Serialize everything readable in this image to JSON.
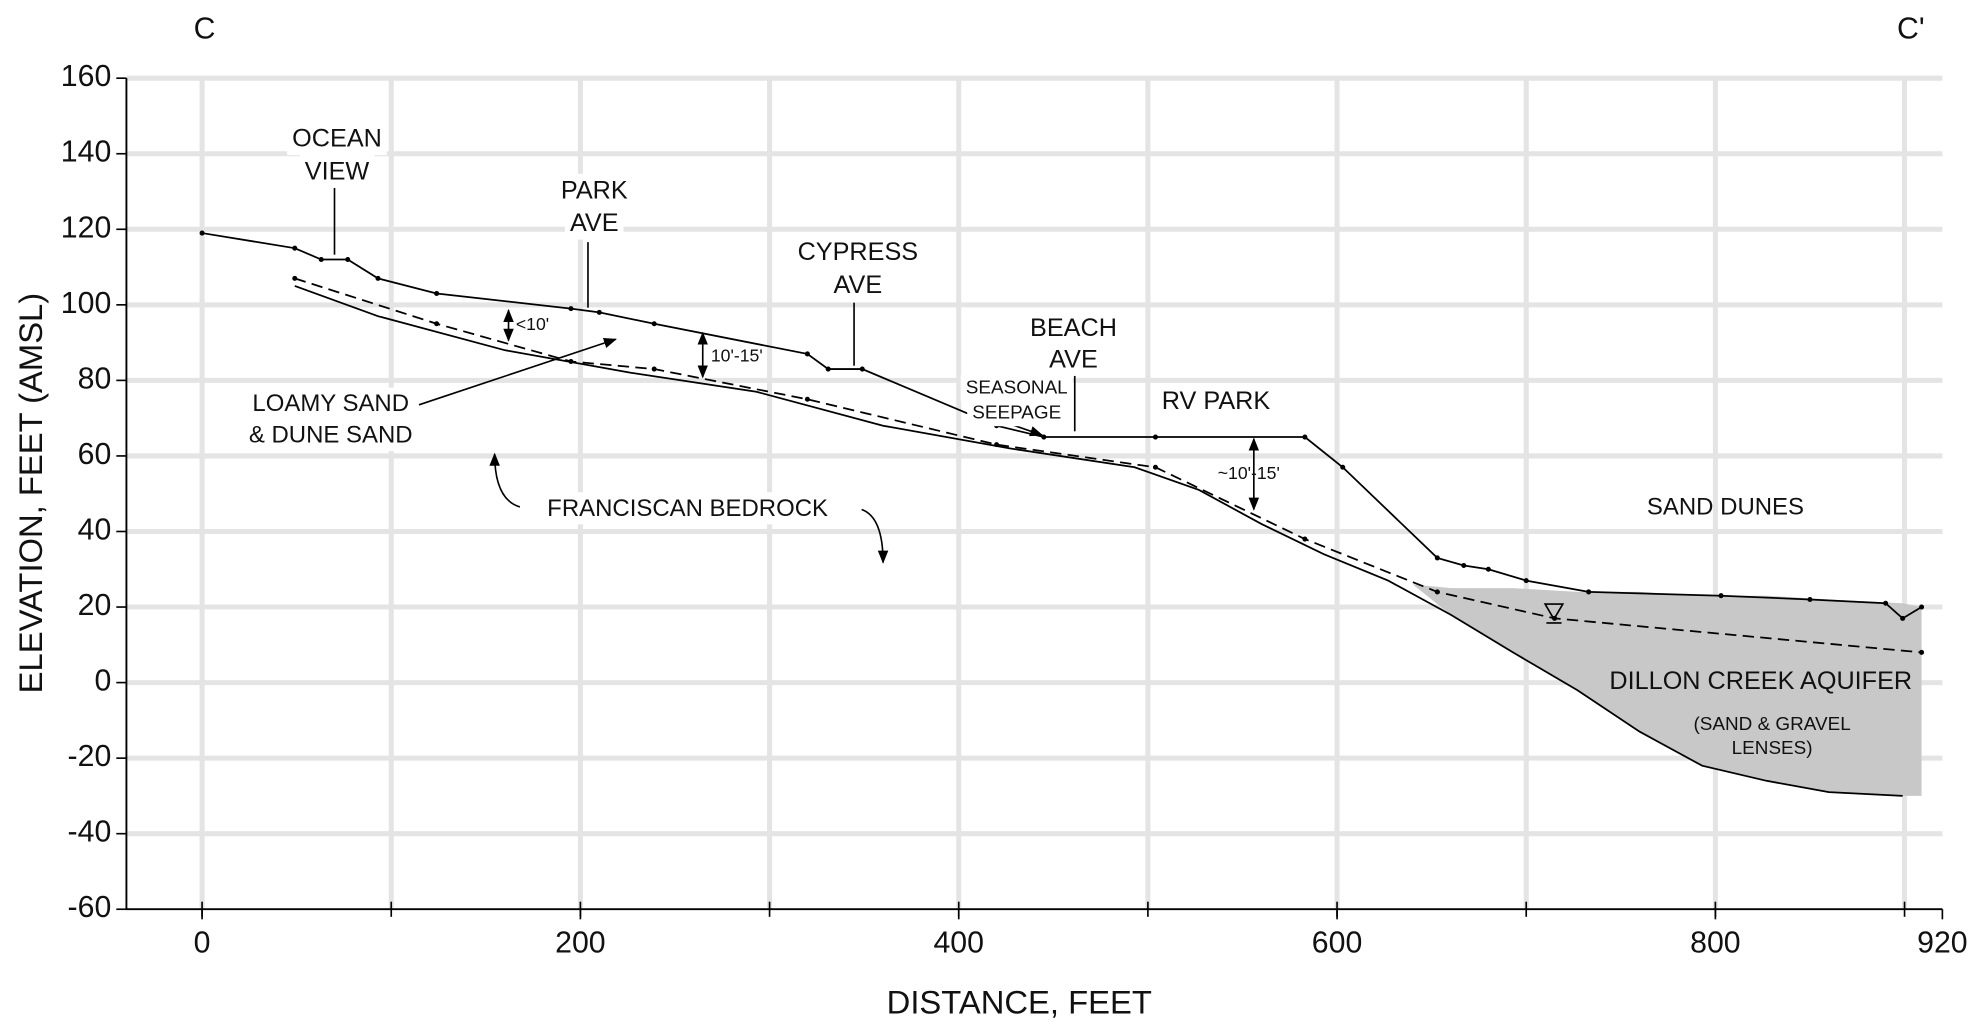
{
  "chart_data": {
    "type": "cross-section",
    "xlabel": "DISTANCE, FEET",
    "ylabel": "ELEVATION, FEET (AMSL)",
    "xlim": [
      -40,
      920
    ],
    "ylim": [
      -60,
      160
    ],
    "xticks": [
      0,
      200,
      400,
      600,
      800,
      920
    ],
    "xgrid": [
      0,
      100,
      200,
      300,
      400,
      500,
      600,
      700,
      800,
      900
    ],
    "yticks": [
      -60,
      -40,
      -20,
      0,
      20,
      40,
      60,
      80,
      100,
      120,
      140,
      160
    ],
    "grid": true,
    "series": [
      {
        "fill": "#c8c8c8",
        "x": [
          640,
          660,
          693,
          727,
          760,
          793,
          827,
          860,
          899,
          909
        ],
        "values": [
          26,
          25,
          25,
          24,
          24,
          23,
          23,
          22,
          21,
          20
        ],
        "bottom": [
          26,
          18,
          8,
          -2,
          -13,
          -22,
          -26,
          -29,
          -30,
          -30
        ]
      },
      {
        "color": "#000000",
        "style": "solid",
        "markers": true,
        "x": [
          0,
          49,
          63,
          77,
          93,
          124,
          195,
          210,
          239,
          320,
          331,
          349,
          420,
          445,
          504,
          583,
          603,
          653,
          667,
          680,
          700,
          733,
          803,
          850,
          890,
          899,
          909
        ],
        "values": [
          119,
          115,
          112,
          112,
          107,
          103,
          99,
          98,
          95,
          87,
          83,
          83,
          68,
          65,
          65,
          65,
          57,
          33,
          31,
          30,
          27,
          24,
          23,
          22,
          21,
          17,
          20
        ]
      },
      {
        "color": "#000000",
        "style": "dashed",
        "markers": true,
        "x": [
          49,
          124,
          195,
          239,
          320,
          420,
          504,
          583,
          653,
          715,
          909
        ],
        "values": [
          107,
          95,
          85,
          83,
          75,
          63,
          57,
          38,
          24,
          17,
          8
        ]
      },
      {
        "color": "#000000",
        "style": "solid",
        "markers": false,
        "x": [
          49,
          93,
          160,
          227,
          293,
          360,
          427,
          493,
          527,
          560,
          593,
          627,
          660,
          693,
          727,
          760,
          793,
          827,
          860,
          899
        ],
        "values": [
          105,
          97,
          88,
          82,
          77,
          68,
          62,
          57,
          51,
          42,
          34,
          27,
          18,
          8,
          -2,
          -13,
          -22,
          -26,
          -29,
          -30
        ]
      }
    ],
    "annotations": [
      [
        "C"
      ],
      [
        "C'"
      ],
      [
        "OCEAN",
        "VIEW"
      ],
      [
        "PARK",
        "AVE"
      ],
      [
        "CYPRESS",
        "AVE"
      ],
      [
        "BEACH",
        "AVE"
      ],
      [
        "SEASONAL",
        "SEEPAGE"
      ],
      [
        "RV PARK"
      ],
      [
        "<10'"
      ],
      [
        "10'-15'"
      ],
      [
        "~10'-15'"
      ],
      [
        "LOAMY SAND",
        "& DUNE SAND"
      ],
      [
        "FRANCISCAN BEDROCK"
      ],
      [
        "SAND DUNES"
      ],
      [
        "DILLON CREEK AQUIFER"
      ],
      [
        "(SAND & GRAVEL",
        "LENSES)"
      ]
    ]
  }
}
